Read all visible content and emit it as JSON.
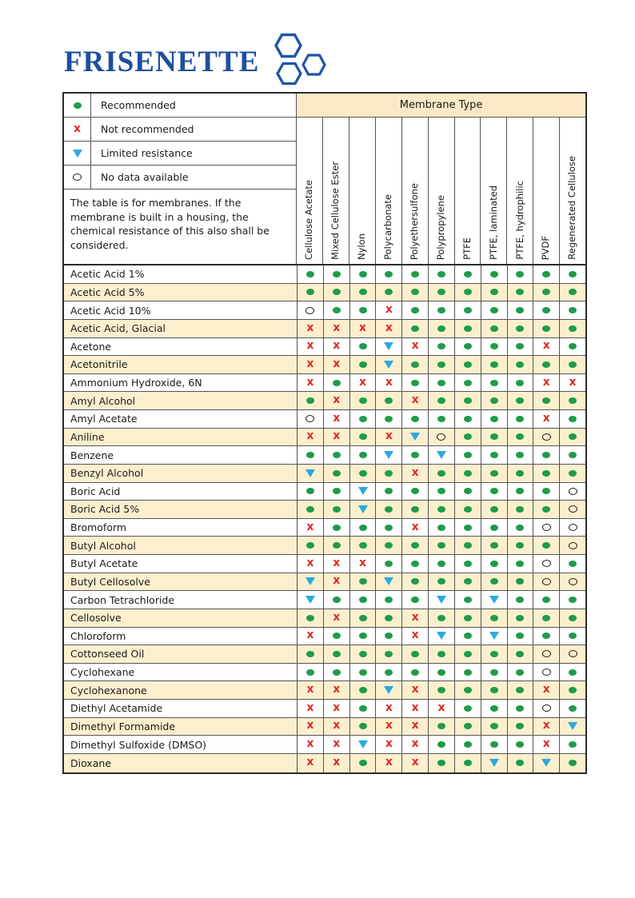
{
  "logo": {
    "text": "FRISENETTE",
    "color": "#1D4F9E"
  },
  "legend": {
    "items": [
      {
        "symbol": "recommended",
        "label": "Recommended"
      },
      {
        "symbol": "not-recommended",
        "label": "Not recommended"
      },
      {
        "symbol": "limited-resistance",
        "label": "Limited resistance"
      },
      {
        "symbol": "no-data",
        "label": "No data available"
      }
    ]
  },
  "note": "The table is for membranes. If the membrane is built in a housing, the chemical resistance of this also shall be considered.",
  "table": {
    "header": "Membrane Type",
    "columns": [
      "Cellulose Acetate",
      "Mixed Cellulose Ester",
      "Nylon",
      "Polycarbonate",
      "Polyethersulfone",
      "Polypropylene",
      "PTFE",
      "PTFE, laminated",
      "PTFE, hydrophilic",
      "PVDF",
      "Regenerated Cellulose"
    ],
    "symbol_key": {
      "G": "Recommended",
      "X": "Not recommended",
      "T": "Limited resistance",
      "O": "No data available"
    },
    "rows": [
      {
        "chemical": "Acetic Acid 1%",
        "values": [
          "G",
          "G",
          "G",
          "G",
          "G",
          "G",
          "G",
          "G",
          "G",
          "G",
          "G"
        ]
      },
      {
        "chemical": "Acetic Acid 5%",
        "values": [
          "G",
          "G",
          "G",
          "G",
          "G",
          "G",
          "G",
          "G",
          "G",
          "G",
          "G"
        ]
      },
      {
        "chemical": "Acetic Acid 10%",
        "values": [
          "O",
          "G",
          "G",
          "X",
          "G",
          "G",
          "G",
          "G",
          "G",
          "G",
          "G"
        ]
      },
      {
        "chemical": "Acetic Acid, Glacial",
        "values": [
          "X",
          "X",
          "X",
          "X",
          "G",
          "G",
          "G",
          "G",
          "G",
          "G",
          "G"
        ]
      },
      {
        "chemical": "Acetone",
        "values": [
          "X",
          "X",
          "G",
          "T",
          "X",
          "G",
          "G",
          "G",
          "G",
          "X",
          "G"
        ]
      },
      {
        "chemical": "Acetonitrile",
        "values": [
          "X",
          "X",
          "G",
          "T",
          "G",
          "G",
          "G",
          "G",
          "G",
          "G",
          "G"
        ]
      },
      {
        "chemical": "Ammonium Hydroxide, 6N",
        "values": [
          "X",
          "G",
          "X",
          "X",
          "G",
          "G",
          "G",
          "G",
          "G",
          "X",
          "X"
        ]
      },
      {
        "chemical": "Amyl Alcohol",
        "values": [
          "G",
          "X",
          "G",
          "G",
          "X",
          "G",
          "G",
          "G",
          "G",
          "G",
          "G"
        ]
      },
      {
        "chemical": "Amyl Acetate",
        "values": [
          "O",
          "X",
          "G",
          "G",
          "G",
          "G",
          "G",
          "G",
          "G",
          "X",
          "G"
        ]
      },
      {
        "chemical": "Aniline",
        "values": [
          "X",
          "X",
          "G",
          "X",
          "T",
          "O",
          "G",
          "G",
          "G",
          "O",
          "G"
        ]
      },
      {
        "chemical": "Benzene",
        "values": [
          "G",
          "G",
          "G",
          "T",
          "G",
          "T",
          "G",
          "G",
          "G",
          "G",
          "G"
        ]
      },
      {
        "chemical": "Benzyl Alcohol",
        "values": [
          "T",
          "G",
          "G",
          "G",
          "X",
          "G",
          "G",
          "G",
          "G",
          "G",
          "G"
        ]
      },
      {
        "chemical": "Boric Acid",
        "values": [
          "G",
          "G",
          "T",
          "G",
          "G",
          "G",
          "G",
          "G",
          "G",
          "G",
          "O"
        ]
      },
      {
        "chemical": "Boric Acid 5%",
        "values": [
          "G",
          "G",
          "T",
          "G",
          "G",
          "G",
          "G",
          "G",
          "G",
          "G",
          "O"
        ]
      },
      {
        "chemical": "Bromoform",
        "values": [
          "X",
          "G",
          "G",
          "G",
          "X",
          "G",
          "G",
          "G",
          "G",
          "O",
          "O"
        ]
      },
      {
        "chemical": "Butyl Alcohol",
        "values": [
          "G",
          "G",
          "G",
          "G",
          "G",
          "G",
          "G",
          "G",
          "G",
          "G",
          "O"
        ]
      },
      {
        "chemical": "Butyl Acetate",
        "values": [
          "X",
          "X",
          "X",
          "G",
          "G",
          "G",
          "G",
          "G",
          "G",
          "O",
          "G"
        ]
      },
      {
        "chemical": "Butyl Cellosolve",
        "values": [
          "T",
          "X",
          "G",
          "T",
          "G",
          "G",
          "G",
          "G",
          "G",
          "O",
          "O"
        ]
      },
      {
        "chemical": "Carbon Tetrachloride",
        "values": [
          "T",
          "G",
          "G",
          "G",
          "G",
          "T",
          "G",
          "T",
          "G",
          "G",
          "G"
        ]
      },
      {
        "chemical": "Cellosolve",
        "values": [
          "G",
          "X",
          "G",
          "G",
          "X",
          "G",
          "G",
          "G",
          "G",
          "G",
          "G"
        ]
      },
      {
        "chemical": "Chloroform",
        "values": [
          "X",
          "G",
          "G",
          "G",
          "X",
          "T",
          "G",
          "T",
          "G",
          "G",
          "G"
        ]
      },
      {
        "chemical": "Cottonseed Oil",
        "values": [
          "G",
          "G",
          "G",
          "G",
          "G",
          "G",
          "G",
          "G",
          "G",
          "O",
          "O"
        ]
      },
      {
        "chemical": "Cyclohexane",
        "values": [
          "G",
          "G",
          "G",
          "G",
          "G",
          "G",
          "G",
          "G",
          "G",
          "O",
          "G"
        ]
      },
      {
        "chemical": "Cyclohexanone",
        "values": [
          "X",
          "X",
          "G",
          "T",
          "X",
          "G",
          "G",
          "G",
          "G",
          "X",
          "G"
        ]
      },
      {
        "chemical": "Diethyl Acetamide",
        "values": [
          "X",
          "X",
          "G",
          "X",
          "X",
          "X",
          "G",
          "G",
          "G",
          "O",
          "G"
        ]
      },
      {
        "chemical": "Dimethyl Formamide",
        "values": [
          "X",
          "X",
          "G",
          "X",
          "X",
          "G",
          "G",
          "G",
          "G",
          "X",
          "T"
        ]
      },
      {
        "chemical": "Dimethyl Sulfoxide (DMSO)",
        "values": [
          "X",
          "X",
          "T",
          "X",
          "X",
          "G",
          "G",
          "G",
          "G",
          "X",
          "G"
        ]
      },
      {
        "chemical": "Dioxane",
        "values": [
          "X",
          "X",
          "G",
          "X",
          "X",
          "G",
          "G",
          "T",
          "G",
          "T",
          "G"
        ]
      }
    ]
  },
  "colors": {
    "recommended": "#1E9C4A",
    "not_recommended": "#DD2B26",
    "limited_resistance": "#2AA9E0",
    "no_data_outline": "#1a1a1a",
    "row_tint": "#FCEFCE",
    "header_tint": "#FBE9C6",
    "logo_blue": "#1D4F9E",
    "border": "#555555"
  }
}
